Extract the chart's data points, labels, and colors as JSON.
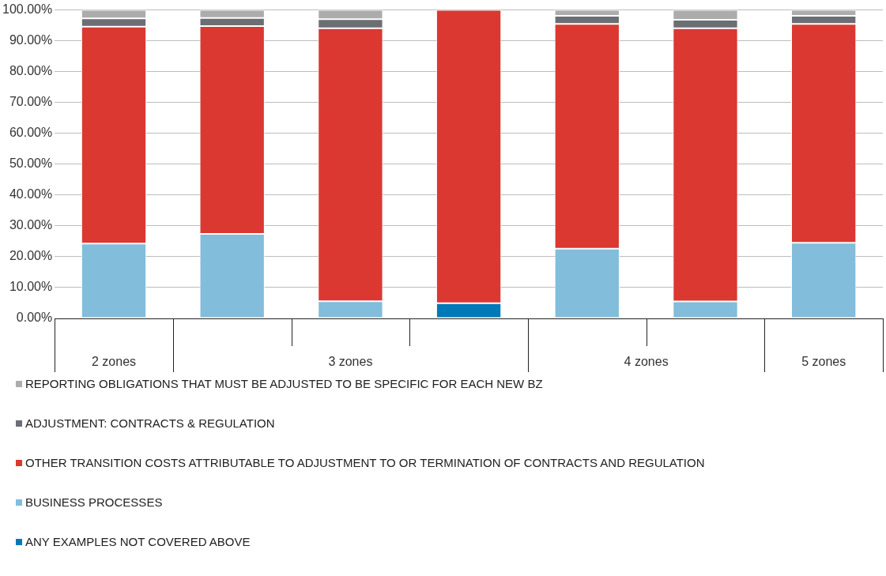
{
  "chart_data": {
    "type": "bar",
    "stacked": true,
    "categories": [
      null,
      null,
      null,
      null,
      null,
      null,
      null
    ],
    "series": [
      {
        "name": "ANY EXAMPLES NOT COVERED ABOVE",
        "color": "#0079b8",
        "values": [
          null,
          null,
          null,
          4.9,
          null,
          null,
          null
        ]
      },
      {
        "name": "BUSINESS PROCESSES",
        "color": "#82bddb",
        "values": [
          24.3,
          27.4,
          5.6,
          null,
          22.6,
          5.5,
          24.5
        ]
      },
      {
        "name": "OTHER TRANSITION COSTS ATTRIBUTABLE TO ADJUSTMENT TO OR TERMINATION OF CONTRACTS AND REGULATION",
        "color": "#db3832",
        "values": [
          70.3,
          67.4,
          88.5,
          95.1,
          72.9,
          88.6,
          71.0
        ]
      },
      {
        "name": "ADJUSTMENT: CONTRACTS & REGULATION",
        "color": "#6b6e72",
        "values": [
          2.7,
          2.6,
          2.9,
          null,
          2.6,
          2.7,
          2.6
        ]
      },
      {
        "name": "REPORTING OBLIGATIONS THAT MUST BE ADJUSTED TO BE SPECIFIC FOR EACH NEW BZ",
        "color": "#acacac",
        "values": [
          2.7,
          2.6,
          3.0,
          null,
          1.9,
          3.2,
          1.9
        ]
      }
    ],
    "ylim": [
      0,
      100
    ],
    "yticks": [
      {
        "value": 0,
        "label": "0.00%"
      },
      {
        "value": 10,
        "label": "10.00%"
      },
      {
        "value": 20,
        "label": "20.00%"
      },
      {
        "value": 30,
        "label": "30.00%"
      },
      {
        "value": 40,
        "label": "40.00%"
      },
      {
        "value": 50,
        "label": "50.00%"
      },
      {
        "value": 60,
        "label": "60.00%"
      },
      {
        "value": 70,
        "label": "70.00%"
      },
      {
        "value": 80,
        "label": "80.00%"
      },
      {
        "value": 90,
        "label": "90.00%"
      },
      {
        "value": 100,
        "label": "100.00%"
      }
    ],
    "grid": "y",
    "legend": "bottom",
    "annotations": [
      "2 zones",
      "3 zones",
      "4 zones",
      "5 zones"
    ]
  }
}
